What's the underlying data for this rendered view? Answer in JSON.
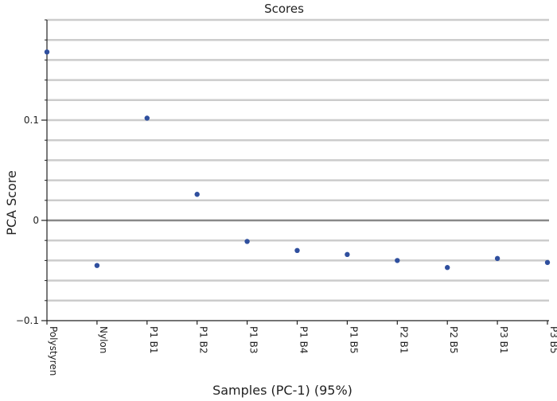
{
  "chart_data": {
    "type": "scatter",
    "title": "Scores",
    "xlabel": "Samples (PC-1) (95%)",
    "ylabel": "PCA Score",
    "categories": [
      "Polystyren",
      "Nylon",
      "P1 B1",
      "P1 B2",
      "P1 B3",
      "P1 B4",
      "P1 B5",
      "P2 B1",
      "P2 B5",
      "P3 B1",
      "P3 B5"
    ],
    "values": [
      0.168,
      -0.045,
      0.102,
      0.026,
      -0.021,
      -0.03,
      -0.034,
      -0.04,
      -0.047,
      -0.038,
      -0.042
    ],
    "ylim": [
      -0.1,
      0.2
    ],
    "yticks": [
      -0.1,
      0,
      0.1
    ],
    "ytick_labels": [
      "−0.1",
      "0",
      "0.1"
    ],
    "grid": true,
    "grid_step": 0.02,
    "colors": {
      "point": "#2f4f9e",
      "grid": "#cccccc",
      "zero_line": "#888888",
      "axis": "#222222"
    }
  }
}
